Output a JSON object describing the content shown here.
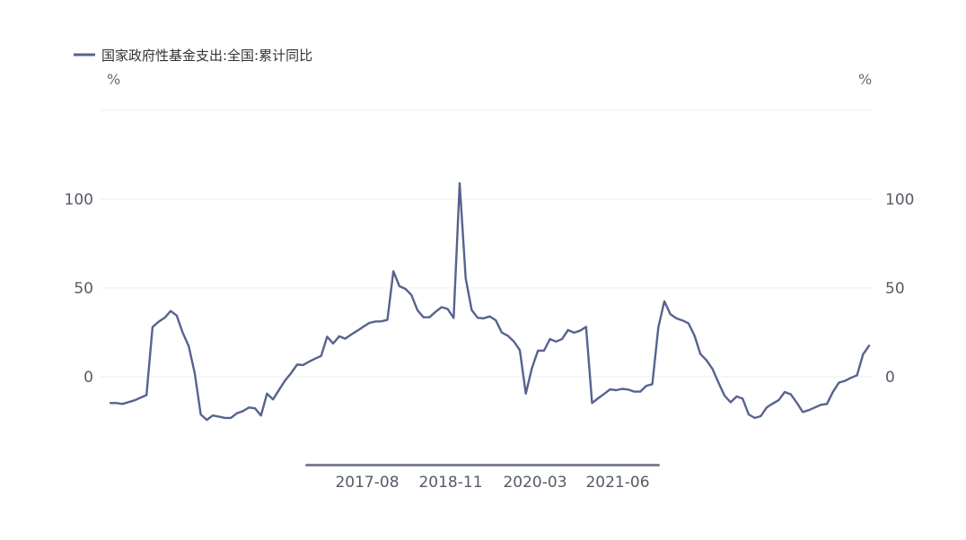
{
  "chart_data": {
    "type": "line",
    "legend": {
      "position": "top-left",
      "entries": [
        "国家政府性基金支出:全国:累计同比"
      ]
    },
    "y_unit_left": "%",
    "y_unit_right": "%",
    "yticks": [
      0,
      50,
      100
    ],
    "ylim": [
      -45,
      150
    ],
    "x_tick_labels": [
      "2017-08",
      "2018-11",
      "2020-03",
      "2021-06"
    ],
    "grid": true,
    "series": [
      {
        "name": "国家政府性基金支出:全国:累计同比",
        "color": "#56638f",
        "values": [
          -14.8,
          -14.8,
          -15.3,
          -14.3,
          -13.3,
          -11.8,
          -10.3,
          28,
          31,
          33.2,
          37,
          34.5,
          24.8,
          17.2,
          2,
          -21.2,
          -24.3,
          -21.8,
          -22.4,
          -23.2,
          -23.2,
          -20.6,
          -19.4,
          -17.3,
          -17.8,
          -21.8,
          -9.5,
          -12.8,
          -7.4,
          -2.1,
          2,
          6.8,
          6.6,
          8.5,
          10.2,
          11.7,
          22.6,
          18.7,
          22.8,
          21.4,
          23.8,
          25.9,
          28.2,
          30.3,
          31.1,
          31.2,
          32,
          59.4,
          51,
          49.5,
          46,
          37.5,
          33.5,
          33.5,
          36.5,
          39.2,
          38.2,
          33.1,
          109,
          55.5,
          37.6,
          33.2,
          32.9,
          34,
          31.8,
          24.9,
          23.1,
          19.9,
          15,
          -9.5,
          4.7,
          14.7,
          14.7,
          21.2,
          19.8,
          21.2,
          26.3,
          24.8,
          25.9,
          28.1,
          -14.8,
          -12.1,
          -9.7,
          -7.1,
          -7.6,
          -6.8,
          -7.2,
          -8.4,
          -8.4,
          -5.1,
          -4.2,
          27.8,
          42.5,
          35.2,
          32.9,
          31.7,
          30.1,
          23.3,
          12.8,
          9.3,
          4.4,
          -3.3,
          -10.6,
          -14.4,
          -11.1,
          -12.3,
          -21.2,
          -23.2,
          -22.2,
          -17.3,
          -15.1,
          -13.2,
          -8.6,
          -9.9,
          -14.6,
          -19.9,
          -18.8,
          -17.3,
          -15.8,
          -15.3,
          -8.5,
          -3.3,
          -2.3,
          -0.6,
          0.8,
          12.6,
          17.5
        ]
      }
    ]
  }
}
